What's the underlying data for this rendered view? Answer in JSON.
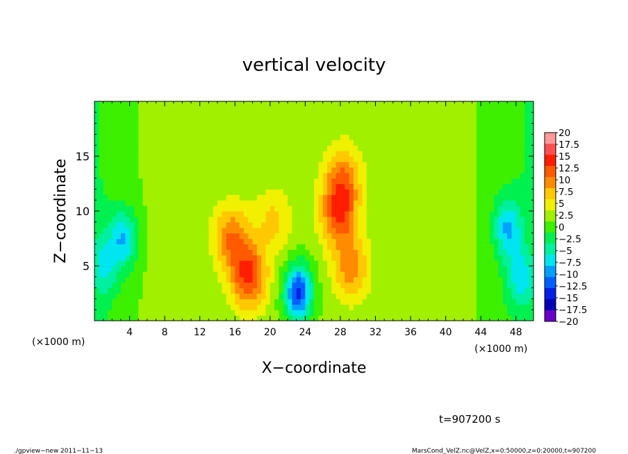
{
  "chart_data": {
    "type": "heatmap",
    "title": "vertical velocity",
    "xlabel": "X−coordinate",
    "ylabel": "Z−coordinate",
    "x_unit_left": "(×1000 m)",
    "x_unit_right": "(×1000 m)",
    "xlim": [
      0,
      50
    ],
    "ylim": [
      0,
      20
    ],
    "x_ticks": [
      4,
      8,
      12,
      16,
      20,
      24,
      28,
      32,
      36,
      40,
      44,
      48
    ],
    "y_ticks": [
      5,
      10,
      15
    ],
    "x_tick_labels": [
      "4",
      "8",
      "12",
      "16",
      "20",
      "24",
      "28",
      "32",
      "36",
      "40",
      "44",
      "48"
    ],
    "y_tick_labels": [
      "5",
      "10",
      "15"
    ],
    "colorbar_levels": [
      "20",
      "17.5",
      "15",
      "12.5",
      "10",
      "7.5",
      "5",
      "2.5",
      "0",
      "−2.5",
      "−5",
      "−7.5",
      "−10",
      "−12.5",
      "−15",
      "−17.5",
      "−20"
    ],
    "colorbar_colors": [
      "#ff9898",
      "#ff5050",
      "#ff1e00",
      "#ff5a00",
      "#ff8c00",
      "#ffc800",
      "#f0f000",
      "#a0f000",
      "#3cf000",
      "#00f050",
      "#00f0a0",
      "#00e6f0",
      "#00a0ff",
      "#0060ff",
      "#0020e6",
      "#0000b4",
      "#6a00c8"
    ],
    "features": [
      {
        "x": 23.2,
        "y": 2.6,
        "value": -16
      },
      {
        "x": 27.8,
        "y": 9.8,
        "value": 11
      },
      {
        "x": 28.3,
        "y": 13.2,
        "value": 8
      },
      {
        "x": 29.2,
        "y": 4.8,
        "value": 8
      },
      {
        "x": 17.6,
        "y": 4.0,
        "value": 12
      },
      {
        "x": 15.6,
        "y": 7.6,
        "value": 9
      },
      {
        "x": 20.4,
        "y": 9.2,
        "value": 5
      },
      {
        "x": 3.3,
        "y": 7.5,
        "value": -9
      },
      {
        "x": 47.0,
        "y": 8.5,
        "value": -9
      },
      {
        "x": 1.0,
        "y": 5.0,
        "value": -6
      },
      {
        "x": 48.5,
        "y": 4.0,
        "value": -7
      }
    ]
  },
  "annotations": {
    "time_label": "t=907200 s",
    "footer_left": "./gpview−new   2011−11−13",
    "footer_right": "MarsCond_VelZ.nc@VelZ,x=0:50000,z=0:20000,t=907200"
  }
}
